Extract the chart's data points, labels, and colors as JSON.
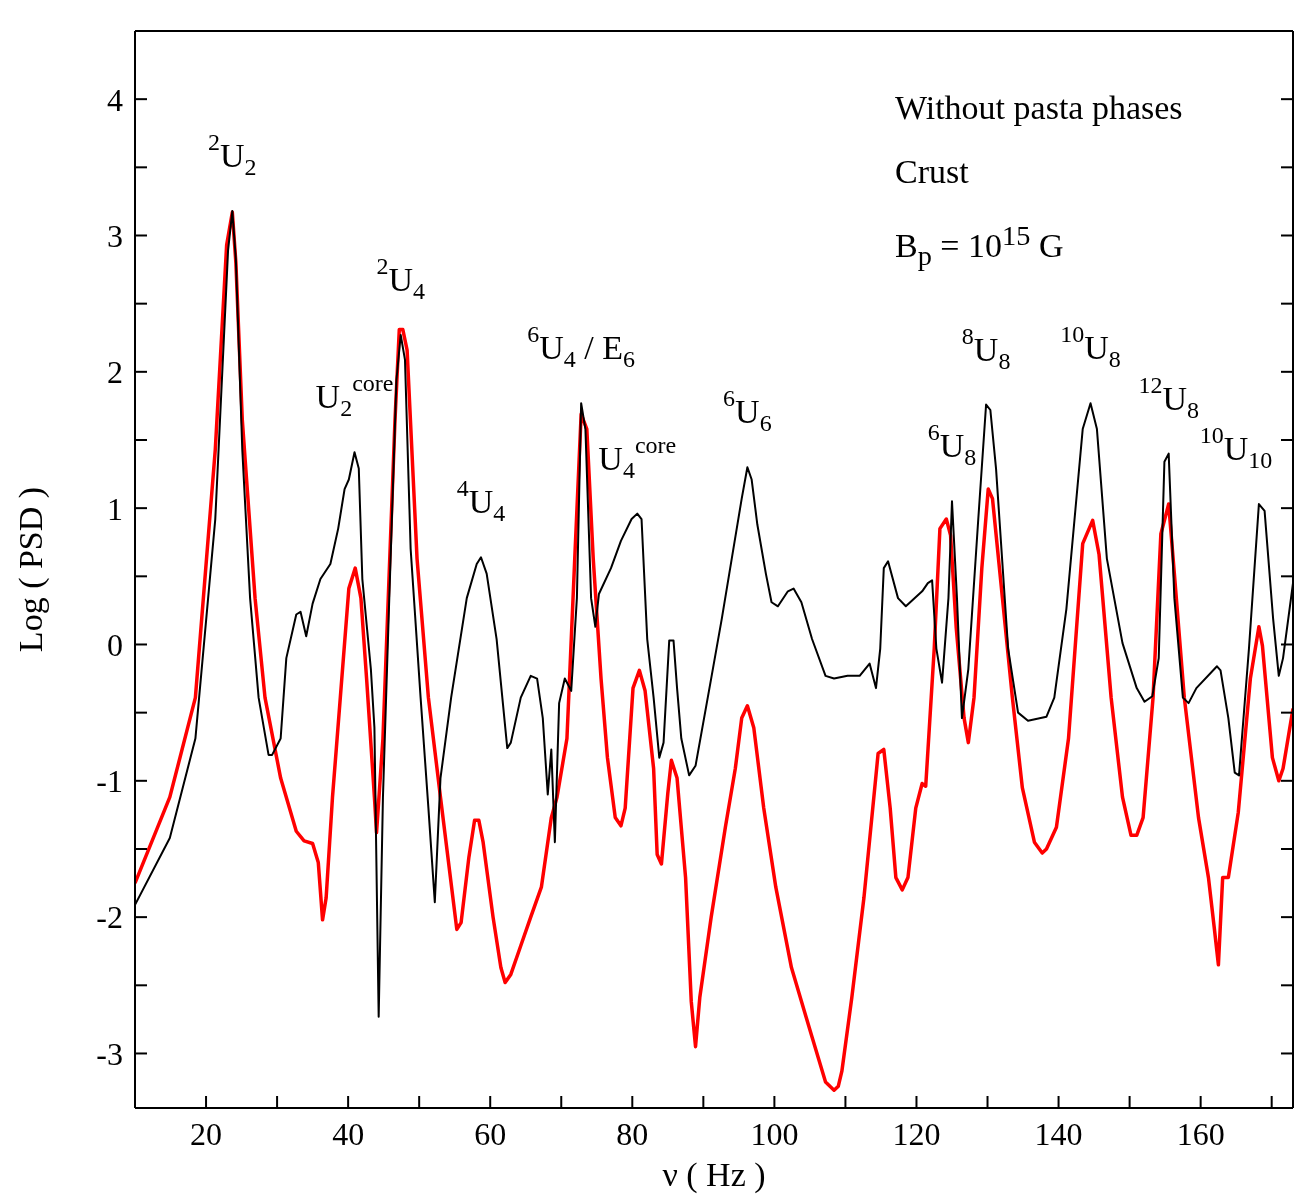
{
  "chart_data": {
    "type": "line",
    "xlabel": "ν ( Hz )",
    "ylabel": "Log ( PSD )",
    "xlim": [
      10,
      173
    ],
    "ylim": [
      -3.4,
      4.5
    ],
    "xticks": [
      20,
      {
        "value": 30,
        "label": null
      },
      40,
      {
        "value": 50,
        "label": null
      },
      60,
      {
        "value": 70,
        "label": null
      },
      80,
      {
        "value": 90,
        "label": null
      },
      100,
      {
        "value": 110,
        "label": null
      },
      120,
      {
        "value": 130,
        "label": null
      },
      140,
      {
        "value": 150,
        "label": null
      },
      160,
      {
        "value": 170,
        "label": null
      }
    ],
    "yticks": [
      -3,
      {
        "value": -2.5,
        "label": null
      },
      -2,
      {
        "value": -1.5,
        "label": null
      },
      -1,
      {
        "value": -0.5,
        "label": null
      },
      0,
      {
        "value": 0.5,
        "label": null
      },
      1,
      {
        "value": 1.5,
        "label": null
      },
      2,
      {
        "value": 2.5,
        "label": null
      },
      3,
      {
        "value": 3.5,
        "label": null
      },
      4
    ],
    "grid": false,
    "legend": false,
    "marker": "none",
    "line_style": "solid",
    "series": [
      {
        "color": "#000000",
        "x": [
          10,
          14.9,
          18.5,
          21.3,
          23.1,
          23.7,
          24.2,
          25.1,
          26.2,
          27.4,
          28.8,
          29.3,
          30.5,
          31.3,
          32.7,
          33.3,
          34.1,
          35.0,
          36.1,
          37.5,
          38.6,
          39.5,
          40.1,
          40.9,
          41.5,
          42.0,
          43.2,
          43.7,
          44.3,
          44.9,
          45.7,
          46.8,
          47.4,
          48.0,
          48.8,
          50.2,
          51.3,
          52.2,
          53.0,
          54.5,
          56.7,
          58.1,
          58.7,
          59.5,
          60.9,
          62.4,
          62.9,
          64.3,
          65.7,
          66.6,
          67.4,
          68.1,
          68.6,
          69.1,
          69.7,
          70.5,
          71.4,
          72.2,
          72.8,
          73.4,
          74.2,
          74.8,
          75.3,
          77.0,
          78.4,
          79.9,
          80.7,
          81.3,
          82.1,
          83.0,
          83.8,
          84.4,
          85.2,
          85.8,
          86.3,
          86.9,
          88.0,
          88.9,
          91.1,
          92.6,
          94.0,
          95.4,
          96.2,
          96.8,
          97.6,
          98.8,
          99.6,
          100.5,
          101.9,
          102.7,
          103.8,
          105.3,
          107.2,
          108.4,
          110.3,
          112.0,
          113.4,
          114.3,
          114.9,
          115.4,
          116.0,
          117.4,
          118.5,
          120.8,
          121.6,
          122.2,
          122.8,
          123.6,
          124.5,
          125.0,
          125.7,
          126.4,
          127.3,
          128.7,
          129.8,
          130.4,
          131.2,
          132.9,
          134.3,
          135.7,
          138.3,
          139.4,
          141.1,
          143.4,
          144.5,
          145.4,
          146.8,
          149.0,
          151.0,
          152.1,
          153.2,
          154.1,
          154.9,
          155.5,
          156.3,
          157.5,
          158.3,
          159.4,
          162.3,
          162.8,
          163.9,
          164.8,
          165.4,
          166.8,
          168.2,
          169.0,
          170.2,
          171.0,
          171.6,
          173
        ],
        "values": [
          -1.91,
          -1.42,
          -0.69,
          0.92,
          2.89,
          3.18,
          2.82,
          1.43,
          0.34,
          -0.39,
          -0.81,
          -0.81,
          -0.69,
          -0.1,
          0.22,
          0.24,
          0.06,
          0.3,
          0.48,
          0.59,
          0.85,
          1.14,
          1.21,
          1.41,
          1.29,
          0.48,
          -0.18,
          -0.61,
          -2.73,
          -1.12,
          0.19,
          1.94,
          2.27,
          2.09,
          0.7,
          -0.39,
          -1.2,
          -1.89,
          -0.98,
          -0.39,
          0.34,
          0.59,
          0.64,
          0.52,
          0.04,
          -0.76,
          -0.72,
          -0.39,
          -0.23,
          -0.25,
          -0.54,
          -1.1,
          -0.77,
          -1.45,
          -0.43,
          -0.25,
          -0.34,
          0.34,
          1.77,
          1.58,
          0.34,
          0.13,
          0.37,
          0.56,
          0.76,
          0.92,
          0.96,
          0.92,
          0.04,
          -0.39,
          -0.83,
          -0.72,
          0.03,
          0.03,
          -0.32,
          -0.69,
          -0.96,
          -0.89,
          -0.25,
          0.19,
          0.63,
          1.07,
          1.3,
          1.21,
          0.88,
          0.52,
          0.31,
          0.28,
          0.39,
          0.41,
          0.31,
          0.04,
          -0.23,
          -0.25,
          -0.23,
          -0.23,
          -0.14,
          -0.32,
          -0.03,
          0.56,
          0.61,
          0.34,
          0.28,
          0.39,
          0.45,
          0.47,
          -0.03,
          -0.28,
          0.34,
          1.05,
          0.34,
          -0.54,
          -0.18,
          0.92,
          1.76,
          1.72,
          1.29,
          -0.03,
          -0.5,
          -0.56,
          -0.53,
          -0.39,
          0.26,
          1.58,
          1.77,
          1.58,
          0.63,
          0.01,
          -0.32,
          -0.42,
          -0.38,
          -0.1,
          1.34,
          1.4,
          0.34,
          -0.39,
          -0.43,
          -0.32,
          -0.16,
          -0.19,
          -0.54,
          -0.94,
          -0.96,
          -0.03,
          1.03,
          0.98,
          0.19,
          -0.23,
          -0.1,
          0.45
        ]
      },
      {
        "color": "#ff0000",
        "x": [
          10,
          14.9,
          18.5,
          21.3,
          22.9,
          23.7,
          24.2,
          25.1,
          26.9,
          28.3,
          30.5,
          32.7,
          33.8,
          35.0,
          35.8,
          36.4,
          36.9,
          37.8,
          38.9,
          40.1,
          41.0,
          41.8,
          42.6,
          43.7,
          44.0,
          44.9,
          46.6,
          47.2,
          47.7,
          48.3,
          49.7,
          51.3,
          53.0,
          55.3,
          55.9,
          57.0,
          57.8,
          58.4,
          59.0,
          60.4,
          61.5,
          62.1,
          62.9,
          64.3,
          65.7,
          67.2,
          68.0,
          68.6,
          69.4,
          70.8,
          71.9,
          72.8,
          73.6,
          74.5,
          75.6,
          76.5,
          77.6,
          78.4,
          79.0,
          80.1,
          81.0,
          81.8,
          83.0,
          83.5,
          84.1,
          85.0,
          85.5,
          86.3,
          87.5,
          88.3,
          88.9,
          89.5,
          91.1,
          93.1,
          94.5,
          95.4,
          96.2,
          97.1,
          98.5,
          100.2,
          102.4,
          105.3,
          107.2,
          108.4,
          109.0,
          109.5,
          110.9,
          112.6,
          114.0,
          114.6,
          115.4,
          116.3,
          117.1,
          118.0,
          118.8,
          119.9,
          120.8,
          121.3,
          122.5,
          123.3,
          124.2,
          124.8,
          125.6,
          126.7,
          127.3,
          128.1,
          129.2,
          130.1,
          130.7,
          132.1,
          133.5,
          134.9,
          136.6,
          137.7,
          138.3,
          139.7,
          141.4,
          143.4,
          144.8,
          145.7,
          147.4,
          149.0,
          150.2,
          151.0,
          151.9,
          153.3,
          154.4,
          155.5,
          156.3,
          157.7,
          159.7,
          161.1,
          161.9,
          162.5,
          163.1,
          163.9,
          165.3,
          167.0,
          168.2,
          168.7,
          170.1,
          171.0,
          171.6,
          173
        ],
        "values": [
          -1.75,
          -1.12,
          -0.39,
          1.43,
          2.93,
          3.17,
          2.8,
          1.65,
          0.34,
          -0.39,
          -0.98,
          -1.37,
          -1.44,
          -1.46,
          -1.6,
          -2.02,
          -1.86,
          -1.12,
          -0.39,
          0.41,
          0.56,
          0.34,
          -0.25,
          -1.12,
          -1.38,
          -0.69,
          1.65,
          2.31,
          2.31,
          2.16,
          0.63,
          -0.39,
          -1.12,
          -2.09,
          -2.04,
          -1.56,
          -1.29,
          -1.29,
          -1.45,
          -2.0,
          -2.37,
          -2.48,
          -2.42,
          -2.21,
          -2.0,
          -1.78,
          -1.49,
          -1.27,
          -1.12,
          -0.69,
          0.63,
          1.69,
          1.58,
          0.63,
          -0.25,
          -0.83,
          -1.27,
          -1.33,
          -1.2,
          -0.32,
          -0.19,
          -0.34,
          -0.91,
          -1.54,
          -1.61,
          -1.09,
          -0.85,
          -0.98,
          -1.71,
          -2.62,
          -2.95,
          -2.59,
          -2.0,
          -1.34,
          -0.91,
          -0.54,
          -0.45,
          -0.61,
          -1.2,
          -1.78,
          -2.37,
          -2.88,
          -3.21,
          -3.27,
          -3.24,
          -3.13,
          -2.59,
          -1.86,
          -1.12,
          -0.8,
          -0.77,
          -1.2,
          -1.71,
          -1.8,
          -1.71,
          -1.2,
          -1.02,
          -1.04,
          -0.03,
          0.85,
          0.92,
          0.8,
          0.12,
          -0.54,
          -0.72,
          -0.39,
          0.56,
          1.14,
          1.07,
          0.34,
          -0.39,
          -1.05,
          -1.45,
          -1.53,
          -1.5,
          -1.34,
          -0.69,
          0.74,
          0.91,
          0.66,
          -0.39,
          -1.12,
          -1.4,
          -1.4,
          -1.27,
          -0.39,
          0.81,
          1.03,
          0.52,
          -0.39,
          -1.27,
          -1.71,
          -2.07,
          -2.35,
          -1.71,
          -1.71,
          -1.23,
          -0.25,
          0.13,
          -0.01,
          -0.83,
          -1.0,
          -0.91,
          -0.47
        ]
      }
    ],
    "annotations": [
      {
        "text": "$^{2}$U$_{2}$",
        "x": 23.7,
        "y": 3.18
      },
      {
        "text": "U$_{2}$$^{core}$",
        "x": 40.9,
        "y": 1.41
      },
      {
        "text": "$^{2}$U$_{4}$",
        "x": 47.4,
        "y": 2.27
      },
      {
        "text": "$^{4}$U$_{4}$",
        "x": 58.7,
        "y": 0.64
      },
      {
        "text": "$^{6}$U$_{4}$ / E$_{6}$",
        "x": 72.8,
        "y": 1.77
      },
      {
        "text": "U$_{4}$$^{core}$",
        "x": 80.7,
        "y": 0.96
      },
      {
        "text": "$^{6}$U$_{6}$",
        "x": 96.2,
        "y": 1.3
      },
      {
        "text": "$^{6}$U$_{8}$",
        "x": 125.0,
        "y": 1.05
      },
      {
        "text": "$^{8}$U$_{8}$",
        "x": 129.8,
        "y": 1.76
      },
      {
        "text": "$^{10}$U$_{8}$",
        "x": 144.5,
        "y": 1.77
      },
      {
        "text": "$^{12}$U$_{8}$",
        "x": 155.5,
        "y": 1.4
      },
      {
        "text": "$^{10}$U$_{10}$",
        "x": 168.2,
        "y": 1.03
      },
      "Without pasta phases",
      "Crust",
      "B$_{p}$ = 10$^{15}$ G"
    ]
  }
}
